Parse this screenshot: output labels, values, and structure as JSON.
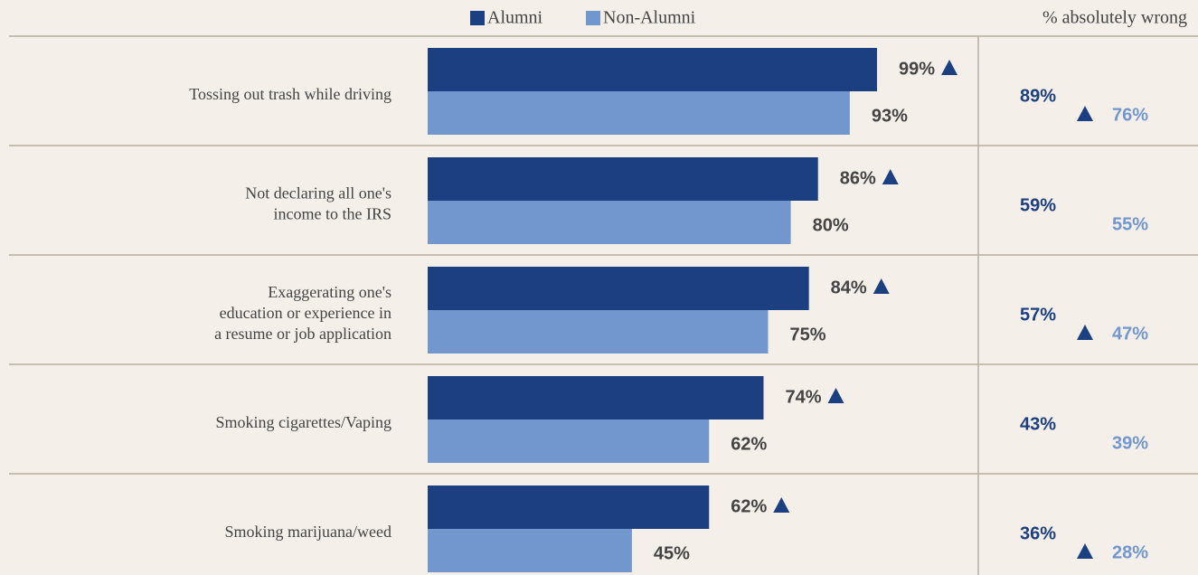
{
  "chart_data": {
    "type": "bar",
    "orientation": "horizontal",
    "categories": [
      "Tossing out trash while driving",
      "Not declaring all one's\nincome to the IRS",
      "Exaggerating one's\neducation or experience in\na resume or job application",
      "Smoking cigarettes/Vaping",
      "Smoking marijuana/weed"
    ],
    "series": [
      {
        "name": "Alumni",
        "color": "#1b3f80",
        "values": [
          99,
          86,
          84,
          74,
          62
        ],
        "value_labels": [
          "99%",
          "86%",
          "84%",
          "74%",
          "62%"
        ]
      },
      {
        "name": "Non-Alumni",
        "color": "#7297cf",
        "values": [
          93,
          80,
          75,
          62,
          45
        ],
        "value_labels": [
          "93%",
          "80%",
          "75%",
          "62%",
          "45%"
        ]
      }
    ],
    "significant": [
      true,
      true,
      true,
      true,
      true
    ],
    "xlim": [
      0,
      100
    ],
    "absolutely_wrong": {
      "title": "% absolutely wrong",
      "series": [
        {
          "color": "#1b3f80",
          "values": [
            89,
            59,
            57,
            43,
            36
          ],
          "value_labels": [
            "89%",
            "59%",
            "57%",
            "43%",
            "36%"
          ]
        },
        {
          "color": "#7297cf",
          "values": [
            76,
            55,
            47,
            39,
            28
          ],
          "value_labels": [
            "76%",
            "55%",
            "47%",
            "39%",
            "28%"
          ]
        }
      ],
      "significant": [
        true,
        false,
        true,
        false,
        true
      ]
    }
  }
}
